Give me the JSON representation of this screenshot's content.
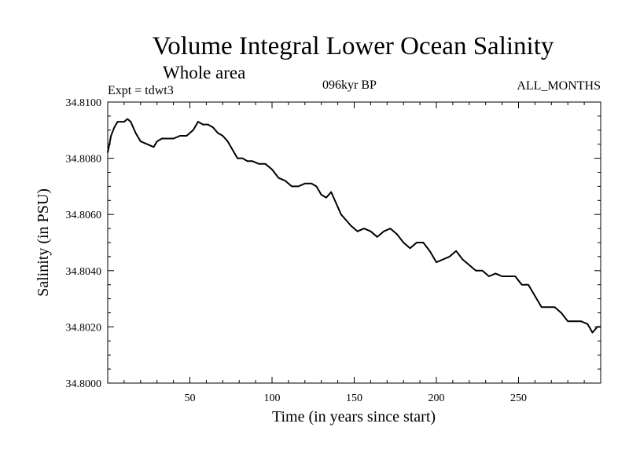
{
  "chart_data": {
    "type": "line",
    "title": "Volume Integral Lower Ocean Salinity",
    "subtitle": "Whole area",
    "annotations": {
      "experiment": "Expt = tdwt3",
      "period": "096kyr BP",
      "months": "ALL_MONTHS"
    },
    "xlabel": "Time (in years since start)",
    "ylabel": "Salinity (in PSU)",
    "xlim": [
      0,
      300
    ],
    "ylim": [
      34.8,
      34.81
    ],
    "xticks": [
      50,
      100,
      150,
      200,
      250
    ],
    "xtick_labels": [
      "50",
      "100",
      "150",
      "200",
      "250"
    ],
    "yticks": [
      34.8,
      34.802,
      34.804,
      34.806,
      34.808,
      34.81
    ],
    "ytick_labels": [
      "34.8000",
      "34.8020",
      "34.8040",
      "34.8060",
      "34.8080",
      "34.8100"
    ],
    "grid": false,
    "series": [
      {
        "name": "Salinity",
        "color": "#000000",
        "x": [
          0,
          2,
          4,
          6,
          8,
          10,
          12,
          14,
          17,
          20,
          24,
          28,
          30,
          33,
          36,
          40,
          44,
          48,
          52,
          55,
          58,
          61,
          64,
          67,
          70,
          73,
          76,
          79,
          82,
          85,
          88,
          92,
          96,
          100,
          104,
          108,
          112,
          116,
          120,
          124,
          127,
          130,
          133,
          136,
          139,
          142,
          145,
          148,
          152,
          156,
          160,
          164,
          168,
          172,
          176,
          180,
          184,
          188,
          192,
          196,
          200,
          204,
          208,
          212,
          216,
          220,
          224,
          228,
          232,
          236,
          240,
          244,
          248,
          252,
          256,
          260,
          264,
          268,
          272,
          276,
          280,
          284,
          288,
          292,
          295,
          298,
          300
        ],
        "y": [
          34.8082,
          34.8088,
          34.8091,
          34.8093,
          34.8093,
          34.8093,
          34.8094,
          34.8093,
          34.8089,
          34.8086,
          34.8085,
          34.8084,
          34.8086,
          34.8087,
          34.8087,
          34.8087,
          34.8088,
          34.8088,
          34.809,
          34.8093,
          34.8092,
          34.8092,
          34.8091,
          34.8089,
          34.8088,
          34.8086,
          34.8083,
          34.808,
          34.808,
          34.8079,
          34.8079,
          34.8078,
          34.8078,
          34.8076,
          34.8073,
          34.8072,
          34.807,
          34.807,
          34.8071,
          34.8071,
          34.807,
          34.8067,
          34.8066,
          34.8068,
          34.8064,
          34.806,
          34.8058,
          34.8056,
          34.8054,
          34.8055,
          34.8054,
          34.8052,
          34.8054,
          34.8055,
          34.8053,
          34.805,
          34.8048,
          34.805,
          34.805,
          34.8047,
          34.8043,
          34.8044,
          34.8045,
          34.8047,
          34.8044,
          34.8042,
          34.804,
          34.804,
          34.8038,
          34.8039,
          34.8038,
          34.8038,
          34.8038,
          34.8035,
          34.8035,
          34.8031,
          34.8027,
          34.8027,
          34.8027,
          34.8025,
          34.8022,
          34.8022,
          34.8022,
          34.8021,
          34.8018,
          34.802,
          34.802
        ]
      }
    ]
  }
}
